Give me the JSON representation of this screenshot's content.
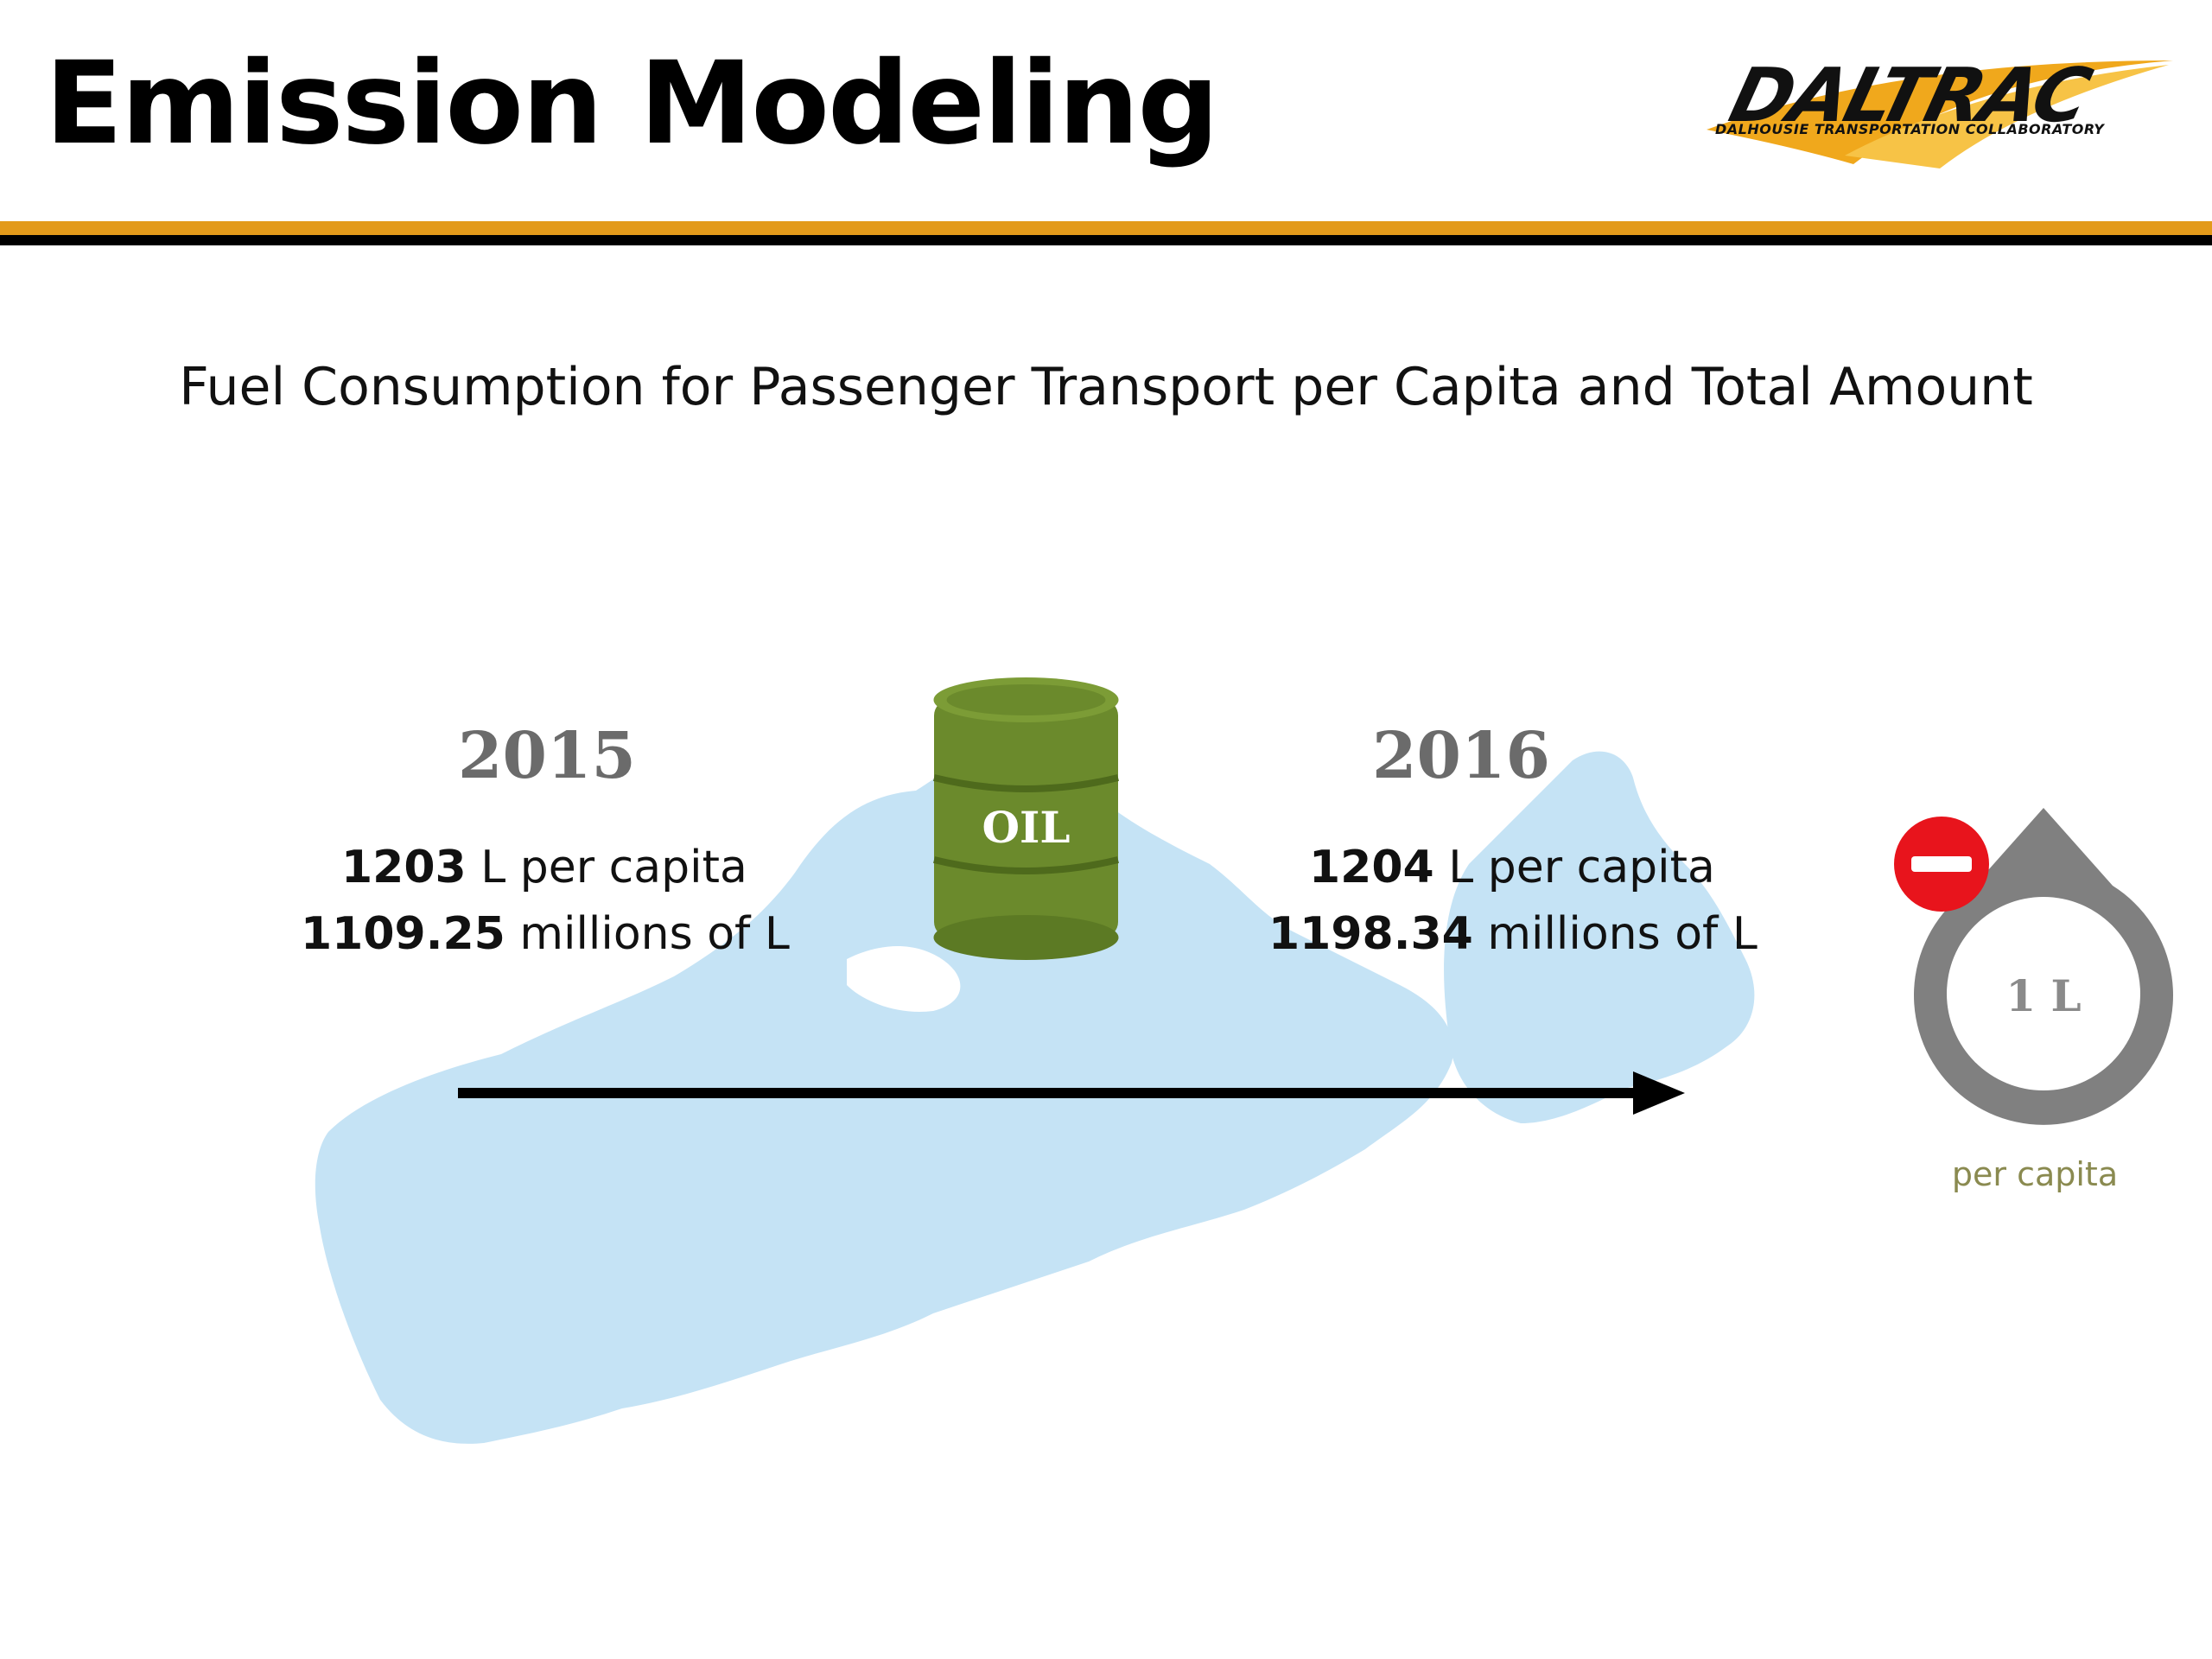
{
  "slide": {
    "title": "Emission Modeling",
    "subtitle": "Fuel Consumption for Passenger Transport per Capita and Total Amount"
  },
  "logo": {
    "wordmark": "DALTRAC",
    "tagline": "DALHOUSIE TRANSPORTATION COLLABORATORY"
  },
  "years": [
    {
      "year": "2015",
      "per_capita_value": "1203",
      "per_capita_unit": " L per capita",
      "total_value": "1109.25",
      "total_unit": " millions of L"
    },
    {
      "year": "2016",
      "per_capita_value": "1204",
      "per_capita_unit": " L per capita",
      "total_value": "1198.34",
      "total_unit": " millions of L"
    }
  ],
  "barrel": {
    "label": "OIL",
    "color": "#6b8a2c"
  },
  "indicator": {
    "value": "1 L",
    "caption": "per capita",
    "badge_color": "#e8141c",
    "ring_color": "#808080"
  },
  "colors": {
    "accent_gold": "#e39a1a",
    "map_fill": "#c5e3f5"
  }
}
